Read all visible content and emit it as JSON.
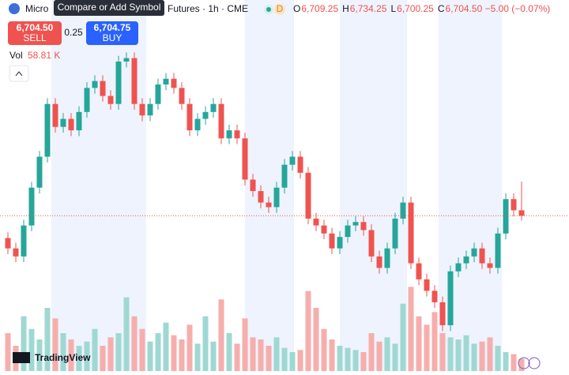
{
  "header": {
    "symbol_start": "Micro",
    "tooltip": "Compare or Add Symbol",
    "symbol_end": "Futures · 1h · CME",
    "badge": "D",
    "ohlc": [
      {
        "key": "O",
        "text": "6,709.25"
      },
      {
        "key": "H",
        "text": "6,734.25"
      },
      {
        "key": "L",
        "text": "6,700.25"
      },
      {
        "key": "C",
        "text": "6,704.50 −5.00 (−0.07%)"
      }
    ],
    "sell_price": "6,704.50",
    "sell": "SELL",
    "spread": "0.25",
    "buy_price": "6,704.75",
    "buy": "BUY",
    "vol_label": "Vol",
    "vol_text": "58.81 K",
    "logo": "TradingView"
  },
  "chart_data": {
    "type": "candlestick",
    "open": [
      6685,
      6676,
      6669,
      6696,
      6729,
      6756,
      6802,
      6782,
      6789,
      6779,
      6795,
      6816,
      6822,
      6809,
      6802,
      6839,
      6842,
      6802,
      6792,
      6802,
      6819,
      6824,
      6816,
      6802,
      6779,
      6789,
      6795,
      6802,
      6772,
      6779,
      6772,
      6736,
      6726,
      6716,
      6712,
      6729,
      6749,
      6756,
      6742,
      6702,
      6696,
      6689,
      6676,
      6686,
      6696,
      6699,
      6692,
      6669,
      6659,
      6676,
      6702,
      6716,
      6663,
      6649,
      6639,
      6629,
      6609,
      6656,
      6663,
      6669,
      6676,
      6663,
      6659,
      6689,
      6719,
      6709.25
    ],
    "high": [
      6690,
      6681,
      6701,
      6734,
      6761,
      6807,
      6807,
      6794,
      6794,
      6800,
      6821,
      6827,
      6827,
      6814,
      6844,
      6847,
      6847,
      6807,
      6807,
      6824,
      6829,
      6829,
      6821,
      6807,
      6794,
      6800,
      6807,
      6807,
      6784,
      6784,
      6777,
      6741,
      6731,
      6721,
      6734,
      6754,
      6761,
      6761,
      6747,
      6707,
      6701,
      6694,
      6691,
      6701,
      6704,
      6704,
      6697,
      6674,
      6681,
      6707,
      6721,
      6721,
      6668,
      6654,
      6644,
      6634,
      6661,
      6668,
      6674,
      6681,
      6681,
      6668,
      6694,
      6724,
      6724,
      6734.25
    ],
    "low": [
      6671,
      6664,
      6664,
      6691,
      6724,
      6751,
      6777,
      6777,
      6774,
      6774,
      6790,
      6811,
      6804,
      6797,
      6797,
      6834,
      6797,
      6787,
      6787,
      6797,
      6814,
      6811,
      6797,
      6774,
      6774,
      6784,
      6790,
      6767,
      6767,
      6767,
      6731,
      6721,
      6711,
      6707,
      6707,
      6724,
      6744,
      6737,
      6697,
      6691,
      6684,
      6671,
      6671,
      6681,
      6691,
      6687,
      6664,
      6654,
      6654,
      6671,
      6697,
      6658,
      6644,
      6634,
      6624,
      6604,
      6604,
      6651,
      6658,
      6664,
      6658,
      6654,
      6654,
      6684,
      6704,
      6700.25
    ],
    "close": [
      6676,
      6669,
      6696,
      6729,
      6756,
      6802,
      6782,
      6789,
      6779,
      6795,
      6816,
      6822,
      6809,
      6802,
      6839,
      6842,
      6802,
      6792,
      6802,
      6819,
      6824,
      6816,
      6802,
      6779,
      6789,
      6795,
      6802,
      6772,
      6779,
      6772,
      6736,
      6726,
      6716,
      6712,
      6729,
      6749,
      6756,
      6742,
      6702,
      6696,
      6689,
      6676,
      6686,
      6696,
      6699,
      6692,
      6669,
      6659,
      6676,
      6702,
      6716,
      6663,
      6649,
      6639,
      6629,
      6609,
      6656,
      6663,
      6669,
      6676,
      6663,
      6659,
      6689,
      6719,
      6709.25,
      6704.5
    ],
    "volume": [
      180,
      120,
      260,
      200,
      150,
      300,
      250,
      180,
      150,
      120,
      140,
      200,
      120,
      160,
      180,
      350,
      260,
      200,
      140,
      180,
      230,
      170,
      150,
      220,
      130,
      260,
      140,
      340,
      180,
      130,
      250,
      160,
      150,
      120,
      160,
      110,
      90,
      100,
      380,
      300,
      200,
      150,
      120,
      110,
      100,
      90,
      180,
      140,
      160,
      130,
      320,
      400,
      260,
      220,
      280,
      180,
      160,
      150,
      170,
      130,
      140,
      160,
      120,
      90,
      80,
      58.81
    ],
    "ylim": [
      6600,
      6850
    ],
    "vlim": [
      0,
      450
    ],
    "up_color": "#26a69a",
    "down_color": "#ef5350",
    "up_volume_color": "#9fd8d2",
    "down_volume_color": "#f6aeac"
  }
}
